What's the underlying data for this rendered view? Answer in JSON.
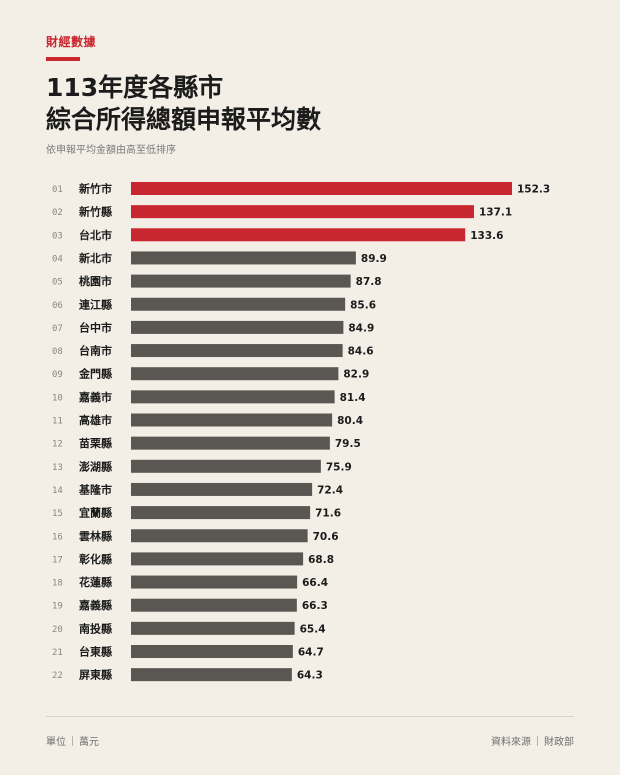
{
  "header": {
    "kicker": "財經數據",
    "title_line1": "113年度各縣市",
    "title_line2": "綜合所得總額申報平均數",
    "subtitle": "依申報平均金額由高至低排序"
  },
  "footer": {
    "unit_label": "單位",
    "unit_value": "萬元",
    "source_label": "資料來源",
    "source_value": "財政部"
  },
  "colors": {
    "highlight": "#c8272f",
    "default": "#5a5753",
    "accent": "#c8272f"
  },
  "chart_data": {
    "type": "bar",
    "orientation": "horizontal",
    "title": "113年度各縣市 綜合所得總額申報平均數",
    "subtitle": "依申報平均金額由高至低排序",
    "unit": "萬元",
    "highlight_top": 3,
    "ranks": [
      "01",
      "02",
      "03",
      "04",
      "05",
      "06",
      "07",
      "08",
      "09",
      "10",
      "11",
      "12",
      "13",
      "14",
      "15",
      "16",
      "17",
      "18",
      "19",
      "20",
      "21",
      "22"
    ],
    "categories": [
      "新竹市",
      "新竹縣",
      "台北市",
      "新北市",
      "桃園市",
      "連江縣",
      "台中市",
      "台南市",
      "金門縣",
      "嘉義市",
      "高雄市",
      "苗栗縣",
      "澎湖縣",
      "基隆市",
      "宜蘭縣",
      "雲林縣",
      "彰化縣",
      "花蓮縣",
      "嘉義縣",
      "南投縣",
      "台東縣",
      "屏東縣"
    ],
    "values": [
      152.3,
      137.1,
      133.6,
      89.9,
      87.8,
      85.6,
      84.9,
      84.6,
      82.9,
      81.4,
      80.4,
      79.5,
      75.9,
      72.4,
      71.6,
      70.6,
      68.8,
      66.4,
      66.3,
      65.4,
      64.7,
      64.3
    ],
    "value_labels": [
      "152.3",
      "137.1",
      "133.6",
      "89.9",
      "87.8",
      "85.6",
      "84.9",
      "84.6",
      "82.9",
      "81.4",
      "80.4",
      "79.5",
      "75.9",
      "72.4",
      "71.6",
      "70.6",
      "68.8",
      "66.4",
      "66.3",
      "65.4",
      "64.7",
      "64.3"
    ],
    "xlim": [
      0,
      152.3
    ],
    "grid": false,
    "legend": "none"
  }
}
